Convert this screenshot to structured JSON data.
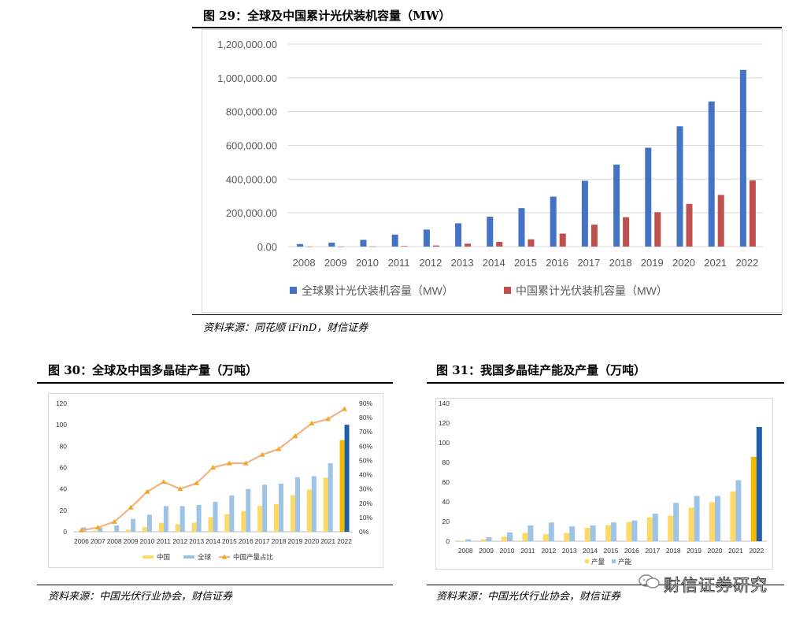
{
  "watermark": "财信证券研究",
  "figures": [
    {
      "title": "图 29：全球及中国累计光伏装机容量（MW）",
      "source": "资料来源：同花顺 iFinD，财信证券",
      "chart_data": {
        "type": "bar",
        "categories": [
          "2008",
          "2009",
          "2010",
          "2011",
          "2012",
          "2013",
          "2014",
          "2015",
          "2016",
          "2017",
          "2018",
          "2019",
          "2020",
          "2021",
          "2022"
        ],
        "series": [
          {
            "name": "全球累计光伏装机容量（MW）",
            "color": "#4472c4",
            "values": [
              15000,
              23000,
              40000,
              71000,
              101000,
              138000,
              177000,
              228000,
              296000,
              390000,
              486000,
              586000,
              713000,
              860000,
              1047000
            ]
          },
          {
            "name": "中国累计光伏装机容量（MW）",
            "color": "#c0504d",
            "values": [
              140,
              300,
              800,
              3300,
              6500,
              17000,
              28000,
              43000,
              77000,
              130000,
              174000,
              204000,
              253000,
              306000,
              392000
            ]
          }
        ],
        "yticks": [
          "0.00",
          "200,000.00",
          "400,000.00",
          "600,000.00",
          "800,000.00",
          "1,000,000.00",
          "1,200,000.00"
        ],
        "ylim": [
          0,
          1200000
        ],
        "legend_position": "bottom",
        "grid": true
      }
    },
    {
      "title": "图 30：全球及中国多晶硅产量（万吨）",
      "source": "资料来源：中国光伏行业协会，财信证券",
      "chart_data": {
        "type": "bar",
        "categories": [
          "2006",
          "2007",
          "2008",
          "2009",
          "2010",
          "2011",
          "2012",
          "2013",
          "2014",
          "2015",
          "2016",
          "2017",
          "2018",
          "2019",
          "2020",
          "2021",
          "2022"
        ],
        "series": [
          {
            "name": "中国",
            "color": "#ffd966",
            "values": [
              0.3,
              1.1,
              0.5,
              2,
              4.5,
              8.4,
              7.1,
              8.5,
              13.6,
              16.5,
              19.4,
              24.2,
              25.9,
              34.2,
              39.6,
              50.5,
              85.7
            ]
          },
          {
            "name": "全球",
            "color": "#9dc3e6",
            "values": [
              4,
              4,
              6,
              12,
              16,
              24,
              24,
              25,
              28,
              34,
              40,
              44,
              45,
              51,
              52,
              64,
              100
            ]
          },
          {
            "name": "中国产量占比",
            "color": "#f4b183",
            "type": "line",
            "axis": "right",
            "values": [
              1,
              3,
              7,
              17,
              28,
              35,
              30,
              34,
              45,
              48,
              48,
              54,
              58,
              67,
              76,
              79,
              86
            ]
          }
        ],
        "highlight_last": {
          "中国": "#f5b800",
          "全球": "#1f5fa8"
        },
        "yticks_left": [
          "0",
          "20",
          "40",
          "60",
          "80",
          "100",
          "120"
        ],
        "yticks_right": [
          "0%",
          "10%",
          "20%",
          "30%",
          "40%",
          "50%",
          "60%",
          "70%",
          "80%",
          "90%"
        ],
        "ylim_left": [
          0,
          120
        ],
        "ylim_right": [
          0,
          90
        ],
        "legend_position": "bottom",
        "grid": false
      }
    },
    {
      "title": "图 31：我国多晶硅产能及产量（万吨）",
      "source": "资料来源：中国光伏行业协会，财信证券",
      "chart_data": {
        "type": "bar",
        "categories": [
          "2008",
          "2009",
          "2010",
          "2011",
          "2012",
          "2013",
          "2014",
          "2015",
          "2016",
          "2017",
          "2018",
          "2019",
          "2020",
          "2021",
          "2022"
        ],
        "series": [
          {
            "name": "产量",
            "color": "#ffd966",
            "values": [
              0.5,
              2,
              4.5,
              8.4,
              7.1,
              8.5,
              13.6,
              16.5,
              19.4,
              24.2,
              25.9,
              34.2,
              39.6,
              50.5,
              85.7
            ]
          },
          {
            "name": "产能",
            "color": "#9dc3e6",
            "values": [
              2,
              4,
              9,
              16,
              19,
              15,
              16,
              19,
              21,
              28,
              39,
              46,
              46,
              62,
              116
            ]
          }
        ],
        "highlight_last": {
          "产量": "#f5b800",
          "产能": "#1f5fa8"
        },
        "yticks": [
          "0",
          "20",
          "40",
          "60",
          "80",
          "100",
          "120",
          "140"
        ],
        "ylim": [
          0,
          140
        ],
        "legend_position": "bottom",
        "grid": false
      }
    }
  ]
}
